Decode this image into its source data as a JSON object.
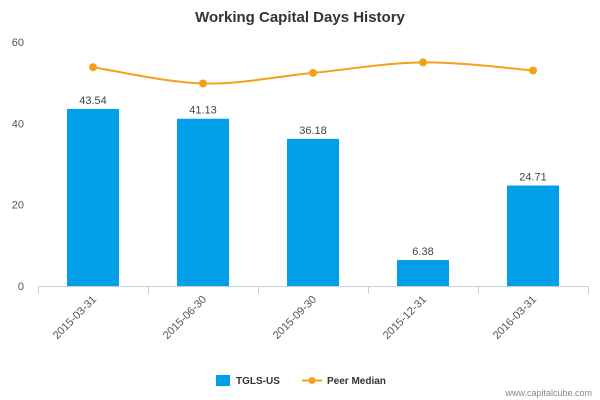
{
  "chart_data": {
    "type": "bar",
    "title": "Working Capital Days History",
    "categories": [
      "2015-03-31",
      "2015-06-30",
      "2015-09-30",
      "2015-12-31",
      "2016-03-31"
    ],
    "ylim": [
      0,
      60
    ],
    "yticks": [
      0,
      20,
      40,
      60
    ],
    "grid": false,
    "legend_position": "bottom",
    "series": [
      {
        "name": "TGLS-US",
        "type": "bar",
        "color": "#009FE8",
        "values": [
          43.54,
          41.13,
          36.18,
          6.38,
          24.71
        ],
        "labels": [
          "43.54",
          "41.13",
          "36.18",
          "6.38",
          "24.71"
        ]
      },
      {
        "name": "Peer Median",
        "type": "line",
        "color": "#F5A01A",
        "values": [
          53.8,
          49.8,
          52.4,
          55.0,
          53.0
        ]
      }
    ]
  },
  "watermark": "www.capitalcube.com"
}
